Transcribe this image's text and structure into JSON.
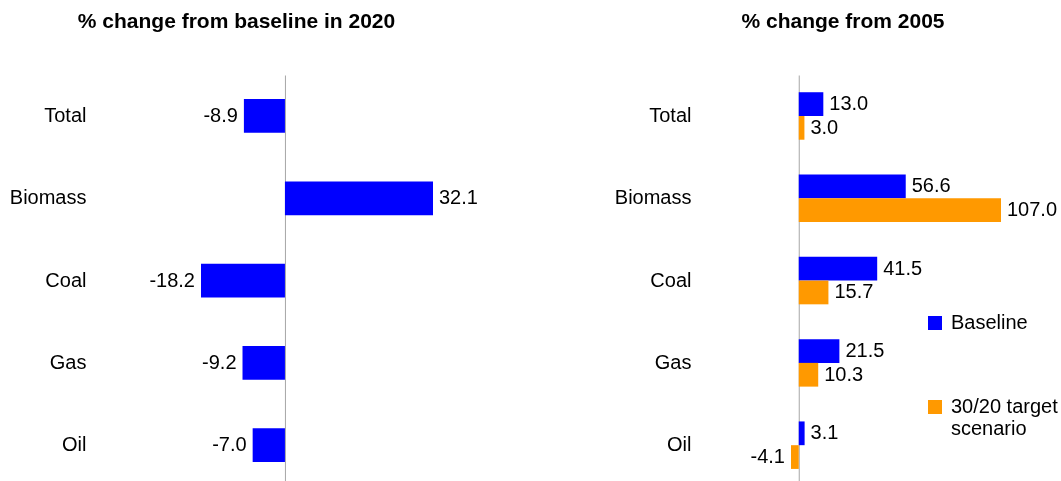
{
  "chart_data": [
    {
      "type": "bar",
      "orientation": "horizontal",
      "title": "% change from baseline in 2020",
      "categories": [
        "Total",
        "Biomass",
        "Coal",
        "Gas",
        "Oil"
      ],
      "values": [
        -8.9,
        32.1,
        -18.2,
        -9.2,
        -7.0
      ],
      "value_labels": [
        "-8.9",
        "32.1",
        "-18.2",
        "-9.2",
        "-7.0"
      ],
      "color": "#0000ff"
    },
    {
      "type": "bar",
      "orientation": "horizontal",
      "title": "% change from 2005",
      "categories": [
        "Total",
        "Biomass",
        "Coal",
        "Gas",
        "Oil"
      ],
      "series": [
        {
          "name": "Baseline",
          "color": "#0000ff",
          "values": [
            13.0,
            56.6,
            41.5,
            21.5,
            3.1
          ],
          "value_labels": [
            "13.0",
            "56.6",
            "41.5",
            "21.5",
            "3.1"
          ]
        },
        {
          "name": "30/20 target scenario",
          "color": "#ff9900",
          "values": [
            3.0,
            107.0,
            15.7,
            10.3,
            -4.1
          ],
          "value_labels": [
            "3.0",
            "107.0",
            "15.7",
            "10.3",
            "-4.1"
          ]
        }
      ],
      "legend": "right"
    }
  ]
}
